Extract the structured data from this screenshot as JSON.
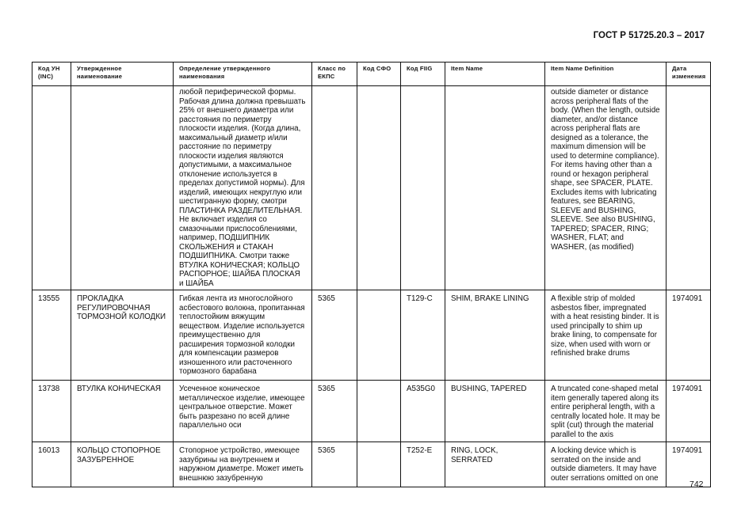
{
  "header": {
    "doc_title": "ГОСТ Р 51725.20.3 – 2017"
  },
  "table": {
    "columns": [
      "Код УН\n(INC)",
      "Утвержденное\nнаименование",
      "Определение утвержденного\nнаименования",
      "Класс по\nЕКПС",
      "Код СФО",
      "Код FIIG",
      "Item Name",
      "Item Name Definition",
      "Дата\nизменения"
    ],
    "rows": [
      {
        "inc": "",
        "name": "",
        "definition": "любой периферической формы.\nРабочая длина должна превышать\n25% от внешнего диаметра или\nрасстояния по периметру\nплоскости изделия. (Когда длина,\nмаксимальный диаметр и/или\nрасстояние по периметру\nплоскости изделия являются\nдопустимыми, а максимальное\nотклонение используется в\nпределах допустимой нормы). Для\nизделий, имеющих некруглую или\nшестигранную форму, смотри\nПЛАСТИНКА РАЗДЕЛИТЕЛЬНАЯ.\nНе включает изделия со\nсмазочными приспособлениями,\nнапример, ПОДШИПНИК\nСКОЛЬЖЕНИЯ и СТАКАН\nПОДШИПНИКА. Смотри также\nВТУЛКА КОНИЧЕСКАЯ; КОЛЬЦО\nРАСПОРНОЕ; ШАЙБА ПЛОСКАЯ\nи ШАЙБА",
        "class": "",
        "sfo": "",
        "fiig": "",
        "item_name": "",
        "item_def": "outside diameter or distance\nacross peripheral flats of the\nbody. (When the length, outside\ndiameter, and/or distance\nacross peripheral flats are\ndesigned as a tolerance, the\nmaximum dimension will be\nused to determine compliance).\nFor items having other than a\nround or hexagon peripheral\nshape, see SPACER, PLATE.\nExcludes items with lubricating\nfeatures, see BEARING,\nSLEEVE and BUSHING,\nSLEEVE. See also BUSHING,\nTAPERED; SPACER, RING;\nWASHER, FLAT; and\nWASHER, (as modified)",
        "date": ""
      },
      {
        "inc": "13555",
        "name": "ПРОКЛАДКА\nРЕГУЛИРОВОЧНАЯ\nТОРМОЗНОЙ КОЛОДКИ",
        "definition": "Гибкая лента из многослойного\nасбестового волокна, пропитанная\nтеплостойким вяжущим\nвеществом. Изделие используется\nпреимущественно для\nрасширения тормозной колодки\nдля компенсации размеров\nизношенного или расточенного\nтормозного барабана",
        "class": "5365",
        "sfo": "",
        "fiig": "T129-C",
        "item_name": "SHIM, BRAKE LINING",
        "item_def": "A flexible strip of molded\nasbestos fiber, impregnated\nwith a heat resisting binder. It is\nused principally to shim up\nbrake lining, to compensate for\nsize, when used with worn or\nrefinished brake drums",
        "date": "1974091"
      },
      {
        "inc": "13738",
        "name": "ВТУЛКА КОНИЧЕСКАЯ",
        "definition": "Усеченное коническое\nметаллическое изделие, имеющее\nцентральное отверстие. Может\nбыть разрезано по всей длине\nпараллельно оси",
        "class": "5365",
        "sfo": "",
        "fiig": "A535G0",
        "item_name": "BUSHING, TAPERED",
        "item_def": "A truncated cone-shaped metal\nitem generally tapered along its\nentire peripheral length, with a\ncentrally located hole. It may be\nsplit (cut) through the material\nparallel to the axis",
        "date": "1974091"
      },
      {
        "inc": "16013",
        "name": "КОЛЬЦО СТОПОРНОЕ\nЗАЗУБРЕННОЕ",
        "definition": "Стопорное устройство, имеющее\nзазубрины на внутреннем и\nнаружном диаметре. Может иметь\nвнешнюю зазубренную",
        "class": "5365",
        "sfo": "",
        "fiig": "T252-E",
        "item_name": "RING, LOCK,\nSERRATED",
        "item_def": "A locking device which is\nserrated on the inside and\noutside diameters. It may have\nouter serrations omitted on one",
        "date": "1974091"
      }
    ]
  },
  "footer": {
    "page_number": "742"
  }
}
